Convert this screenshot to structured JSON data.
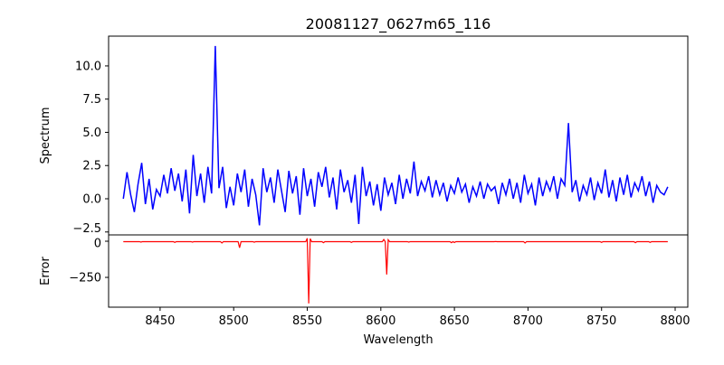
{
  "chart_data": {
    "type": "line",
    "title": "20081127_0627m65_116",
    "xlabel": "Wavelength",
    "xlim": [
      8415,
      8808.6
    ],
    "xticks": [
      8450,
      8500,
      8550,
      8600,
      8650,
      8700,
      8750,
      8800
    ],
    "panels": [
      {
        "ylabel": "Spectrum",
        "ylim": [
          -2.72,
          12.24
        ],
        "yticks": [
          -2.5,
          0.0,
          2.5,
          5.0,
          7.5,
          10.0
        ],
        "ytick_labels": [
          "−2.5",
          "0.0",
          "2.5",
          "5.0",
          "7.5",
          "10.0"
        ],
        "color": "#0000ff",
        "x_start": 8425,
        "x_step": 2.5,
        "values": [
          0.0,
          2.0,
          0.3,
          -1.0,
          1.1,
          2.7,
          -0.4,
          1.5,
          -0.8,
          0.7,
          0.2,
          1.8,
          0.4,
          2.3,
          0.6,
          1.9,
          -0.2,
          2.2,
          -1.1,
          3.3,
          0.2,
          1.9,
          -0.3,
          2.4,
          0.4,
          11.5,
          0.8,
          2.4,
          -0.7,
          0.9,
          -0.5,
          1.9,
          0.5,
          2.2,
          -0.6,
          1.5,
          0.3,
          -2.0,
          2.3,
          0.5,
          1.6,
          -0.3,
          2.2,
          0.6,
          -1.0,
          2.1,
          0.4,
          1.7,
          -1.2,
          2.3,
          0.2,
          1.5,
          -0.6,
          2.0,
          0.9,
          2.4,
          0.1,
          1.6,
          -0.8,
          2.2,
          0.5,
          1.4,
          -0.3,
          1.8,
          -1.9,
          2.4,
          0.2,
          1.3,
          -0.5,
          1.1,
          -0.9,
          1.6,
          0.3,
          1.2,
          -0.4,
          1.8,
          0.0,
          1.5,
          0.4,
          2.8,
          0.2,
          1.3,
          0.6,
          1.7,
          0.1,
          1.4,
          0.3,
          1.2,
          -0.2,
          1.0,
          0.4,
          1.6,
          0.5,
          1.1,
          -0.3,
          0.9,
          0.2,
          1.3,
          0.0,
          1.1,
          0.6,
          0.9,
          -0.4,
          1.2,
          0.3,
          1.5,
          0.0,
          1.2,
          -0.3,
          1.8,
          0.4,
          1.1,
          -0.5,
          1.6,
          0.2,
          1.3,
          0.6,
          1.7,
          0.0,
          1.5,
          1.0,
          5.7,
          0.5,
          1.4,
          -0.2,
          1.0,
          0.3,
          1.6,
          -0.1,
          1.2,
          0.4,
          2.2,
          0.1,
          1.4,
          -0.2,
          1.6,
          0.3,
          1.8,
          0.1,
          1.2,
          0.6,
          1.7,
          0.2,
          1.3,
          -0.3,
          1.0,
          0.5,
          0.3,
          0.9
        ]
      },
      {
        "ylabel": "Error",
        "ylim": [
          -456,
          43.75
        ],
        "yticks": [
          0,
          -250
        ],
        "ytick_labels": [
          "0",
          "−250"
        ],
        "color": "#ff0000",
        "x_start": 8425,
        "x_end": 8795,
        "x_step": 1,
        "baseline": -3,
        "features": [
          [
            8437,
            -6
          ],
          [
            8460,
            -8
          ],
          [
            8472,
            -6
          ],
          [
            8492,
            -12
          ],
          [
            8504,
            -45
          ],
          [
            8514,
            -7
          ],
          [
            8550,
            20
          ],
          [
            8551,
            -430
          ],
          [
            8552,
            18
          ],
          [
            8561,
            -10
          ],
          [
            8580,
            -8
          ],
          [
            8602,
            12
          ],
          [
            8604,
            -230
          ],
          [
            8605,
            10
          ],
          [
            8619,
            -6
          ],
          [
            8648,
            -10
          ],
          [
            8650,
            -9
          ],
          [
            8678,
            -2
          ],
          [
            8698,
            -12
          ],
          [
            8750,
            -8
          ],
          [
            8773,
            -10
          ],
          [
            8783,
            -8
          ]
        ]
      }
    ]
  }
}
